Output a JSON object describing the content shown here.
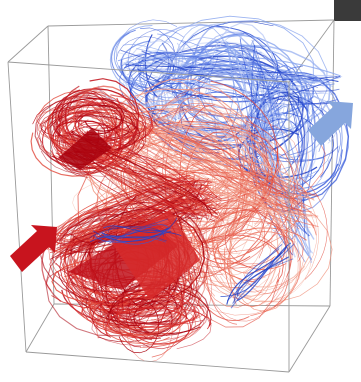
{
  "figure": {
    "background": "#ffffff",
    "box_edge_color": "#9a9a9a",
    "inflow_arrow_color": "#c8141e",
    "outflow_arrow_color": "#86a6dd",
    "warm_palette": [
      "#a8000d",
      "#c0101a",
      "#d62a2a",
      "#e24a3c",
      "#ec6a55",
      "#f0907a",
      "#f4b3a3"
    ],
    "cool_palette": [
      "#1f3fc7",
      "#3558d8",
      "#5e7fe6",
      "#8aa6ee",
      "#b8c8f5"
    ],
    "corner_tab_color": "#3a3a3a"
  }
}
